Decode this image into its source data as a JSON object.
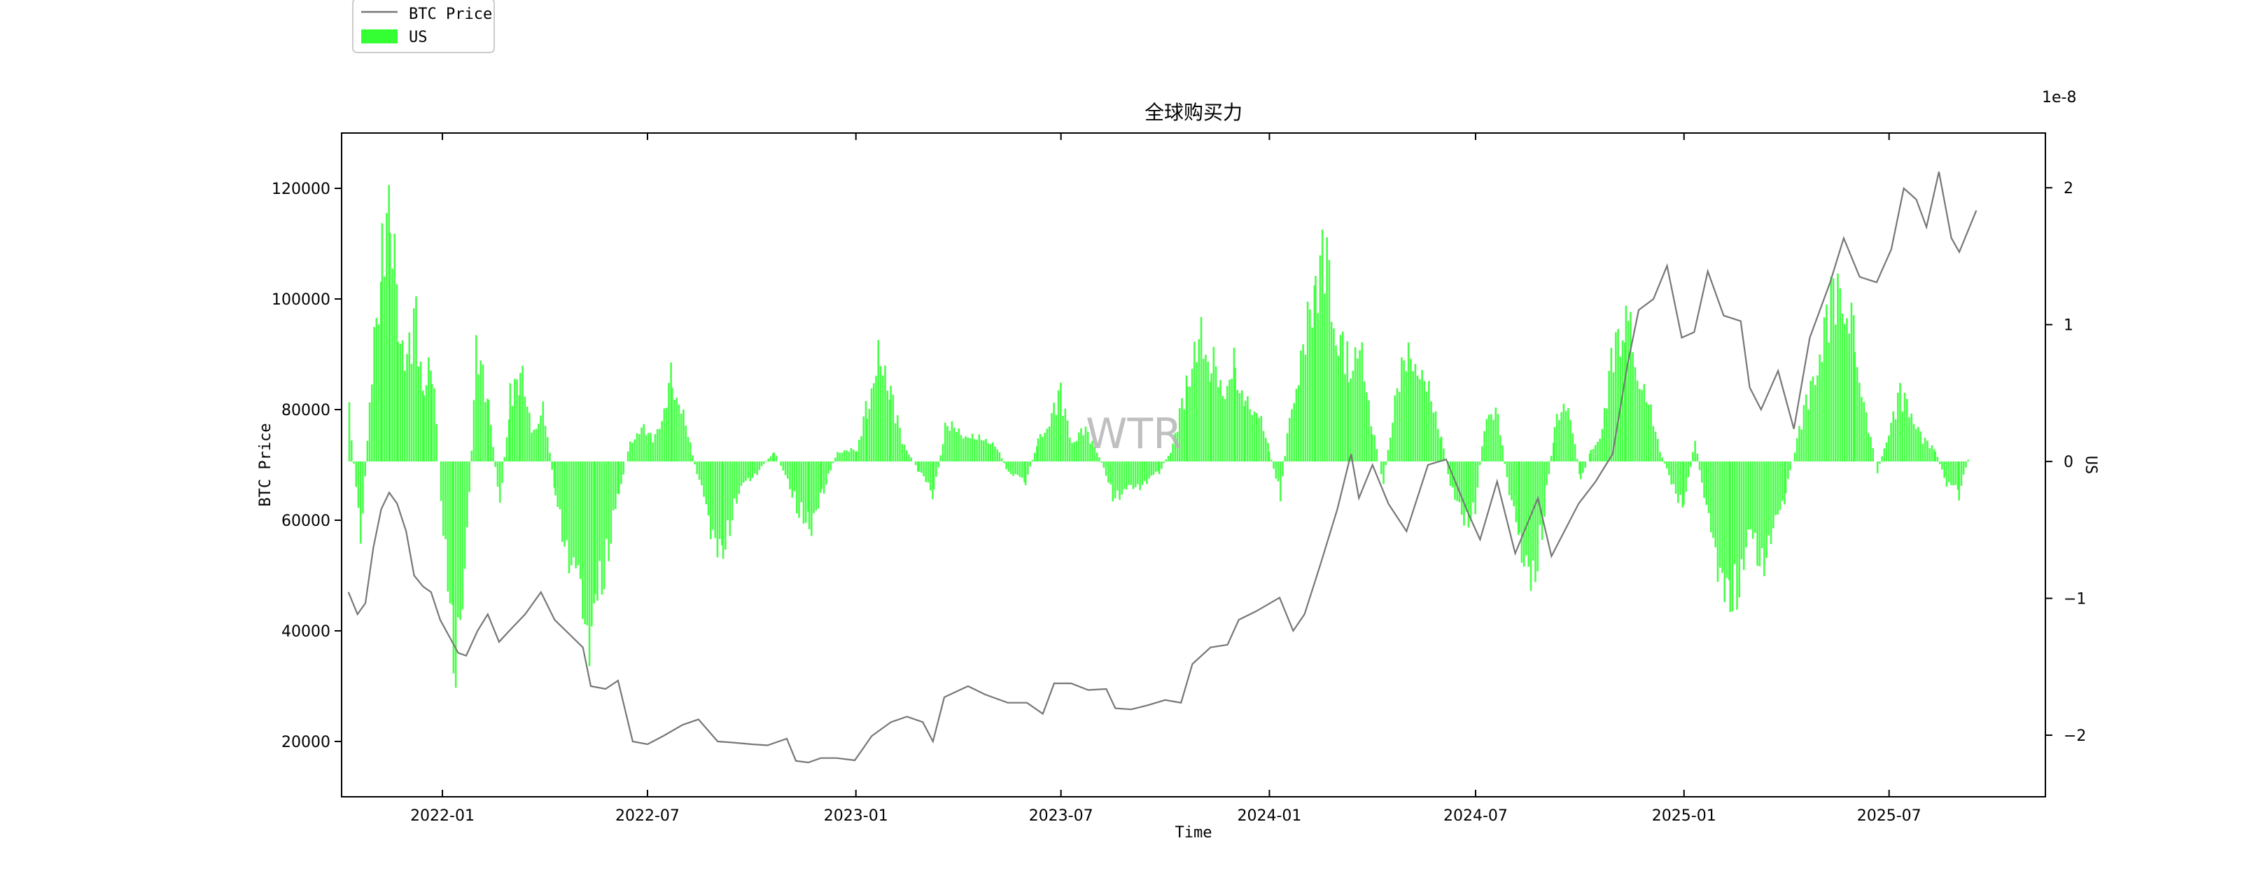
{
  "chart_data": {
    "type": "bar",
    "title": "全球购买力",
    "xlabel": "Time",
    "ylabel_left": "BTC Price",
    "ylabel_right": "US",
    "right_axis_offset_label": "1e-8",
    "watermark": "WTR",
    "xlim": [
      "2021-10-04",
      "2025-11-16"
    ],
    "ylim_left": [
      10000,
      130000
    ],
    "ylim_right": [
      -2.45,
      2.4
    ],
    "x_ticks": [
      "2022-01",
      "2022-07",
      "2023-01",
      "2023-07",
      "2024-01",
      "2024-07",
      "2025-01",
      "2025-07"
    ],
    "y_ticks_left": [
      20000,
      40000,
      60000,
      80000,
      100000,
      120000
    ],
    "y_ticks_right": [
      -2,
      -1,
      0,
      1,
      2
    ],
    "legend": {
      "placement": "top-left, outside above axes",
      "entries": [
        "BTC Price",
        "US"
      ]
    },
    "grid": false,
    "series": [
      {
        "name": "BTC Price",
        "type": "line",
        "color": "#777777",
        "points": [
          [
            "2021-10-10",
            47000
          ],
          [
            "2021-10-18",
            43000
          ],
          [
            "2021-10-25",
            45000
          ],
          [
            "2021-11-01",
            55000
          ],
          [
            "2021-11-08",
            62000
          ],
          [
            "2021-11-15",
            65000
          ],
          [
            "2021-11-22",
            63000
          ],
          [
            "2021-11-30",
            58000
          ],
          [
            "2021-12-07",
            50000
          ],
          [
            "2021-12-15",
            48000
          ],
          [
            "2021-12-22",
            47000
          ],
          [
            "2021-12-30",
            42000
          ],
          [
            "2022-01-07",
            39000
          ],
          [
            "2022-01-15",
            36000
          ],
          [
            "2022-01-22",
            35500
          ],
          [
            "2022-02-01",
            40000
          ],
          [
            "2022-02-10",
            43000
          ],
          [
            "2022-02-20",
            38000
          ],
          [
            "2022-03-01",
            40000
          ],
          [
            "2022-03-15",
            43000
          ],
          [
            "2022-03-29",
            47000
          ],
          [
            "2022-04-10",
            42000
          ],
          [
            "2022-04-25",
            39000
          ],
          [
            "2022-05-05",
            37000
          ],
          [
            "2022-05-12",
            30000
          ],
          [
            "2022-05-25",
            29500
          ],
          [
            "2022-06-05",
            31000
          ],
          [
            "2022-06-18",
            20000
          ],
          [
            "2022-07-01",
            19500
          ],
          [
            "2022-07-15",
            21000
          ],
          [
            "2022-08-01",
            23000
          ],
          [
            "2022-08-15",
            24000
          ],
          [
            "2022-09-01",
            20000
          ],
          [
            "2022-09-15",
            19800
          ],
          [
            "2022-10-01",
            19500
          ],
          [
            "2022-10-15",
            19300
          ],
          [
            "2022-11-01",
            20500
          ],
          [
            "2022-11-09",
            16500
          ],
          [
            "2022-11-20",
            16200
          ],
          [
            "2022-12-01",
            17000
          ],
          [
            "2022-12-15",
            17000
          ],
          [
            "2022-12-31",
            16600
          ],
          [
            "2023-01-15",
            21000
          ],
          [
            "2023-02-01",
            23500
          ],
          [
            "2023-02-15",
            24500
          ],
          [
            "2023-03-01",
            23500
          ],
          [
            "2023-03-10",
            20000
          ],
          [
            "2023-03-20",
            28000
          ],
          [
            "2023-04-10",
            30000
          ],
          [
            "2023-04-25",
            28500
          ],
          [
            "2023-05-15",
            27000
          ],
          [
            "2023-06-01",
            27000
          ],
          [
            "2023-06-15",
            25000
          ],
          [
            "2023-06-25",
            30500
          ],
          [
            "2023-07-10",
            30500
          ],
          [
            "2023-07-25",
            29300
          ],
          [
            "2023-08-10",
            29500
          ],
          [
            "2023-08-18",
            26000
          ],
          [
            "2023-09-01",
            25800
          ],
          [
            "2023-09-15",
            26500
          ],
          [
            "2023-10-01",
            27500
          ],
          [
            "2023-10-15",
            27000
          ],
          [
            "2023-10-25",
            34000
          ],
          [
            "2023-11-10",
            37000
          ],
          [
            "2023-11-25",
            37500
          ],
          [
            "2023-12-05",
            42000
          ],
          [
            "2023-12-20",
            43500
          ],
          [
            "2024-01-10",
            46000
          ],
          [
            "2024-01-22",
            40000
          ],
          [
            "2024-02-01",
            43000
          ],
          [
            "2024-02-15",
            52000
          ],
          [
            "2024-03-01",
            62000
          ],
          [
            "2024-03-13",
            72000
          ],
          [
            "2024-03-20",
            64000
          ],
          [
            "2024-04-01",
            70000
          ],
          [
            "2024-04-15",
            63000
          ],
          [
            "2024-05-01",
            58000
          ],
          [
            "2024-05-20",
            70000
          ],
          [
            "2024-06-05",
            71000
          ],
          [
            "2024-06-25",
            61000
          ],
          [
            "2024-07-05",
            56500
          ],
          [
            "2024-07-20",
            67000
          ],
          [
            "2024-08-05",
            54000
          ],
          [
            "2024-08-25",
            64000
          ],
          [
            "2024-09-06",
            53500
          ],
          [
            "2024-09-30",
            63000
          ],
          [
            "2024-10-15",
            67000
          ],
          [
            "2024-10-30",
            72000
          ],
          [
            "2024-11-12",
            88000
          ],
          [
            "2024-11-22",
            98000
          ],
          [
            "2024-12-05",
            100000
          ],
          [
            "2024-12-17",
            106000
          ],
          [
            "2024-12-30",
            93000
          ],
          [
            "2025-01-10",
            94000
          ],
          [
            "2025-01-22",
            105000
          ],
          [
            "2025-02-05",
            97000
          ],
          [
            "2025-02-20",
            96000
          ],
          [
            "2025-02-28",
            84000
          ],
          [
            "2025-03-10",
            80000
          ],
          [
            "2025-03-25",
            87000
          ],
          [
            "2025-04-08",
            76500
          ],
          [
            "2025-04-22",
            93000
          ],
          [
            "2025-05-10",
            103000
          ],
          [
            "2025-05-22",
            111000
          ],
          [
            "2025-06-05",
            104000
          ],
          [
            "2025-06-20",
            103000
          ],
          [
            "2025-07-03",
            109000
          ],
          [
            "2025-07-14",
            120000
          ],
          [
            "2025-07-25",
            118000
          ],
          [
            "2025-08-03",
            113000
          ],
          [
            "2025-08-14",
            123000
          ],
          [
            "2025-08-25",
            111000
          ],
          [
            "2025-09-01",
            108500
          ],
          [
            "2025-09-10",
            113000
          ],
          [
            "2025-09-16",
            116000
          ]
        ]
      },
      {
        "name": "US",
        "type": "bar",
        "color": "#33ff33",
        "unit_scale": 1e-08,
        "points": [
          [
            "2021-10-10",
            0.5
          ],
          [
            "2021-10-20",
            -0.8
          ],
          [
            "2021-10-30",
            0.8
          ],
          [
            "2021-11-08",
            1.8
          ],
          [
            "2021-11-15",
            2.2
          ],
          [
            "2021-11-22",
            1.4
          ],
          [
            "2021-11-30",
            0.9
          ],
          [
            "2021-12-08",
            1.3
          ],
          [
            "2021-12-15",
            0.6
          ],
          [
            "2021-12-22",
            0.9
          ],
          [
            "2022-01-01",
            -0.6
          ],
          [
            "2022-01-10",
            -1.8
          ],
          [
            "2022-01-20",
            -1.2
          ],
          [
            "2022-01-30",
            1.0
          ],
          [
            "2022-02-10",
            0.5
          ],
          [
            "2022-02-20",
            -0.4
          ],
          [
            "2022-03-01",
            0.6
          ],
          [
            "2022-03-10",
            0.8
          ],
          [
            "2022-03-20",
            0.3
          ],
          [
            "2022-03-30",
            0.5
          ],
          [
            "2022-04-10",
            -0.3
          ],
          [
            "2022-04-20",
            -0.8
          ],
          [
            "2022-04-30",
            -1.2
          ],
          [
            "2022-05-08",
            -1.6
          ],
          [
            "2022-05-15",
            -1.3
          ],
          [
            "2022-05-25",
            -0.9
          ],
          [
            "2022-06-05",
            -0.3
          ],
          [
            "2022-06-15",
            0.2
          ],
          [
            "2022-06-25",
            0.3
          ],
          [
            "2022-07-05",
            0.2
          ],
          [
            "2022-07-15",
            0.5
          ],
          [
            "2022-07-22",
            0.8
          ],
          [
            "2022-08-01",
            0.4
          ],
          [
            "2022-08-15",
            -0.2
          ],
          [
            "2022-08-25",
            -0.6
          ],
          [
            "2022-09-05",
            -0.8
          ],
          [
            "2022-09-15",
            -0.4
          ],
          [
            "2022-09-25",
            -0.2
          ],
          [
            "2022-10-05",
            -0.1
          ],
          [
            "2022-10-20",
            0.1
          ],
          [
            "2022-11-01",
            -0.2
          ],
          [
            "2022-11-09",
            -0.4
          ],
          [
            "2022-11-20",
            -0.6
          ],
          [
            "2022-12-01",
            -0.3
          ],
          [
            "2022-12-15",
            0.1
          ],
          [
            "2023-01-01",
            0.1
          ],
          [
            "2023-01-10",
            0.5
          ],
          [
            "2023-01-20",
            0.9
          ],
          [
            "2023-01-31",
            0.6
          ],
          [
            "2023-02-10",
            0.2
          ],
          [
            "2023-02-25",
            -0.1
          ],
          [
            "2023-03-10",
            -0.3
          ],
          [
            "2023-03-20",
            0.3
          ],
          [
            "2023-04-01",
            0.3
          ],
          [
            "2023-04-15",
            0.2
          ],
          [
            "2023-05-01",
            0.2
          ],
          [
            "2023-05-15",
            -0.1
          ],
          [
            "2023-05-30",
            -0.2
          ],
          [
            "2023-06-10",
            0.2
          ],
          [
            "2023-06-20",
            0.4
          ],
          [
            "2023-06-30",
            0.6
          ],
          [
            "2023-07-10",
            0.2
          ],
          [
            "2023-07-20",
            0.3
          ],
          [
            "2023-08-01",
            0.1
          ],
          [
            "2023-08-15",
            -0.3
          ],
          [
            "2023-08-25",
            -0.3
          ],
          [
            "2023-09-10",
            -0.2
          ],
          [
            "2023-09-25",
            -0.1
          ],
          [
            "2023-10-05",
            0.1
          ],
          [
            "2023-10-20",
            0.7
          ],
          [
            "2023-11-01",
            1.1
          ],
          [
            "2023-11-10",
            0.9
          ],
          [
            "2023-11-20",
            0.7
          ],
          [
            "2023-12-01",
            0.9
          ],
          [
            "2023-12-10",
            0.6
          ],
          [
            "2023-12-20",
            0.5
          ],
          [
            "2023-12-31",
            0.1
          ],
          [
            "2024-01-10",
            -0.3
          ],
          [
            "2024-01-20",
            0.6
          ],
          [
            "2024-01-30",
            1.0
          ],
          [
            "2024-02-10",
            1.5
          ],
          [
            "2024-02-20",
            1.9
          ],
          [
            "2024-02-28",
            1.3
          ],
          [
            "2024-03-10",
            0.9
          ],
          [
            "2024-03-20",
            1.0
          ],
          [
            "2024-03-31",
            0.3
          ],
          [
            "2024-04-10",
            -0.2
          ],
          [
            "2024-04-20",
            0.6
          ],
          [
            "2024-04-30",
            0.9
          ],
          [
            "2024-05-10",
            1.0
          ],
          [
            "2024-05-20",
            0.6
          ],
          [
            "2024-05-31",
            0.2
          ],
          [
            "2024-06-10",
            -0.3
          ],
          [
            "2024-06-20",
            -0.6
          ],
          [
            "2024-06-30",
            -0.4
          ],
          [
            "2024-07-10",
            0.5
          ],
          [
            "2024-07-20",
            0.4
          ],
          [
            "2024-07-30",
            -0.3
          ],
          [
            "2024-08-08",
            -0.8
          ],
          [
            "2024-08-18",
            -1.3
          ],
          [
            "2024-08-28",
            -0.6
          ],
          [
            "2024-09-08",
            0.3
          ],
          [
            "2024-09-20",
            0.6
          ],
          [
            "2024-10-01",
            -0.2
          ],
          [
            "2024-10-10",
            0.1
          ],
          [
            "2024-10-20",
            0.3
          ],
          [
            "2024-10-30",
            1.0
          ],
          [
            "2024-11-10",
            1.4
          ],
          [
            "2024-11-20",
            0.9
          ],
          [
            "2024-11-30",
            0.5
          ],
          [
            "2024-12-10",
            0.1
          ],
          [
            "2024-12-20",
            -0.2
          ],
          [
            "2024-12-31",
            -0.4
          ],
          [
            "2025-01-10",
            0.2
          ],
          [
            "2025-01-20",
            -0.5
          ],
          [
            "2025-01-30",
            -0.9
          ],
          [
            "2025-02-10",
            -1.2
          ],
          [
            "2025-02-20",
            -1.1
          ],
          [
            "2025-02-28",
            -0.7
          ],
          [
            "2025-03-10",
            -0.9
          ],
          [
            "2025-03-20",
            -0.7
          ],
          [
            "2025-03-31",
            -0.3
          ],
          [
            "2025-04-10",
            0.2
          ],
          [
            "2025-04-20",
            0.6
          ],
          [
            "2025-04-30",
            1.1
          ],
          [
            "2025-05-10",
            1.4
          ],
          [
            "2025-05-20",
            1.7
          ],
          [
            "2025-05-31",
            1.2
          ],
          [
            "2025-06-10",
            0.4
          ],
          [
            "2025-06-20",
            -0.1
          ],
          [
            "2025-06-30",
            0.3
          ],
          [
            "2025-07-10",
            0.6
          ],
          [
            "2025-07-20",
            0.5
          ],
          [
            "2025-07-30",
            0.2
          ],
          [
            "2025-08-10",
            0.1
          ],
          [
            "2025-08-20",
            -0.2
          ],
          [
            "2025-08-31",
            -0.3
          ],
          [
            "2025-09-10",
            0.1
          ]
        ]
      }
    ]
  }
}
